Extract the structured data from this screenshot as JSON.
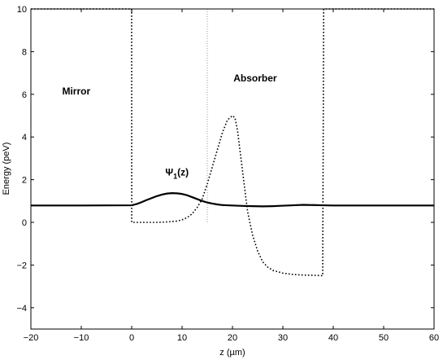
{
  "chart_data": {
    "type": "line",
    "xlabel": "z (µm)",
    "ylabel": "Energy (peV)",
    "xlim": [
      -20,
      60
    ],
    "ylim": [
      -5,
      10
    ],
    "xticks": [
      -20,
      -10,
      0,
      10,
      20,
      30,
      40,
      50,
      60
    ],
    "xtick_labels": [
      "−20",
      "−10",
      "0",
      "10",
      "20",
      "30",
      "40",
      "50",
      "60"
    ],
    "yticks": [
      -4,
      -2,
      0,
      2,
      4,
      6,
      8,
      10
    ],
    "ytick_labels": [
      "−4",
      "−2",
      "0",
      "2",
      "4",
      "6",
      "8",
      "10"
    ],
    "grid": false,
    "annotations": [
      {
        "text": "Mirror",
        "x": -11,
        "y": 6.0
      },
      {
        "text": "Absorber",
        "x": 24.5,
        "y": 6.6
      },
      {
        "text": "Ψ",
        "sub": "1",
        "suffix": "(z)",
        "x": 9,
        "y": 2.2
      }
    ],
    "series": [
      {
        "style": "dotted",
        "x": [
          -20,
          -0.01,
          0,
          0.01,
          2,
          5,
          7,
          9,
          10,
          11,
          12,
          13,
          14,
          15,
          16,
          17,
          18,
          19,
          20,
          20.5,
          21,
          22,
          23,
          24,
          25,
          26,
          27,
          28,
          30,
          32,
          34,
          36,
          37.9,
          38,
          38.1,
          60
        ],
        "y": [
          10,
          10,
          5,
          0,
          0,
          0,
          0.02,
          0.06,
          0.12,
          0.22,
          0.4,
          0.7,
          1.1,
          1.8,
          2.6,
          3.4,
          4.2,
          4.8,
          5.0,
          4.9,
          4.3,
          2.4,
          0.5,
          -0.6,
          -1.35,
          -1.85,
          -2.1,
          -2.25,
          -2.38,
          -2.44,
          -2.47,
          -2.48,
          -2.5,
          3.75,
          10,
          10
        ]
      },
      {
        "style": "dotted-vertical",
        "x": [
          15,
          15
        ],
        "y": [
          0,
          10
        ]
      },
      {
        "style": "solid",
        "x": [
          -20,
          -10,
          0,
          1,
          2,
          3,
          4,
          5,
          6,
          7,
          8,
          9,
          10,
          11,
          12,
          13,
          14,
          15,
          16,
          17,
          18,
          19,
          20,
          22,
          24,
          26,
          28,
          30,
          32,
          34,
          36,
          38,
          40,
          50,
          60
        ],
        "y": [
          0.79,
          0.79,
          0.8,
          0.86,
          0.95,
          1.05,
          1.14,
          1.23,
          1.3,
          1.35,
          1.37,
          1.36,
          1.33,
          1.27,
          1.18,
          1.09,
          1.0,
          0.93,
          0.88,
          0.84,
          0.81,
          0.8,
          0.79,
          0.77,
          0.76,
          0.75,
          0.76,
          0.78,
          0.8,
          0.82,
          0.81,
          0.8,
          0.79,
          0.79,
          0.79
        ]
      }
    ]
  }
}
